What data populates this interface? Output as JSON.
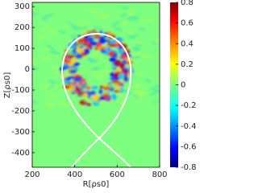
{
  "chart_data": {
    "type": "heatmap",
    "colormap": "jet",
    "xlabel": "R[ρs0]",
    "ylabel": "Z[ρs0]",
    "xlim": [
      200,
      800
    ],
    "xticks": [
      200,
      400,
      600,
      800
    ],
    "ylim": [
      -470,
      320
    ],
    "yticks": [
      300,
      200,
      100,
      0,
      -100,
      -200,
      -300,
      -400
    ],
    "clim": [
      -0.8,
      0.8
    ],
    "cticks": [
      0.8,
      0.6,
      0.4,
      0.2,
      0,
      -0.2,
      -0.4,
      -0.6,
      -0.8
    ]
  }
}
